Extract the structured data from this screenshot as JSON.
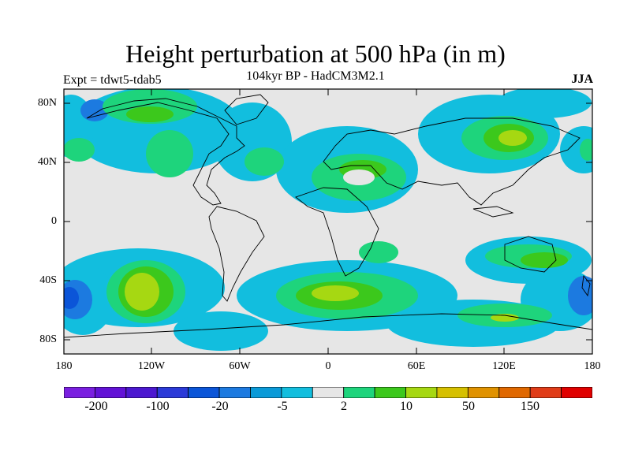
{
  "title": "Height perturbation at 500 hPa (in m)",
  "subtitle": "104kyr BP - HadCM3M2.1",
  "left_label": "Expt = tdwt5-tdab5",
  "right_label": "JJA",
  "lat_labels": [
    "80N",
    "40N",
    "0",
    "40S",
    "80S"
  ],
  "lon_labels": [
    "180",
    "120W",
    "60W",
    "0",
    "60E",
    "120E",
    "180"
  ],
  "colorbar": {
    "colors": [
      "#7a1fe0",
      "#6212d6",
      "#4c18d0",
      "#2b3ad8",
      "#0b55d8",
      "#1c7ae0",
      "#0a9ad8",
      "#12bede",
      "#e6e6e6",
      "#1ed47c",
      "#3cc81c",
      "#a6d812",
      "#d6c000",
      "#e09200",
      "#e06800",
      "#e03c18",
      "#e00000"
    ],
    "tick_labels": [
      "-200",
      "-100",
      "-20",
      "-5",
      "2",
      "10",
      "50",
      "150"
    ]
  }
}
